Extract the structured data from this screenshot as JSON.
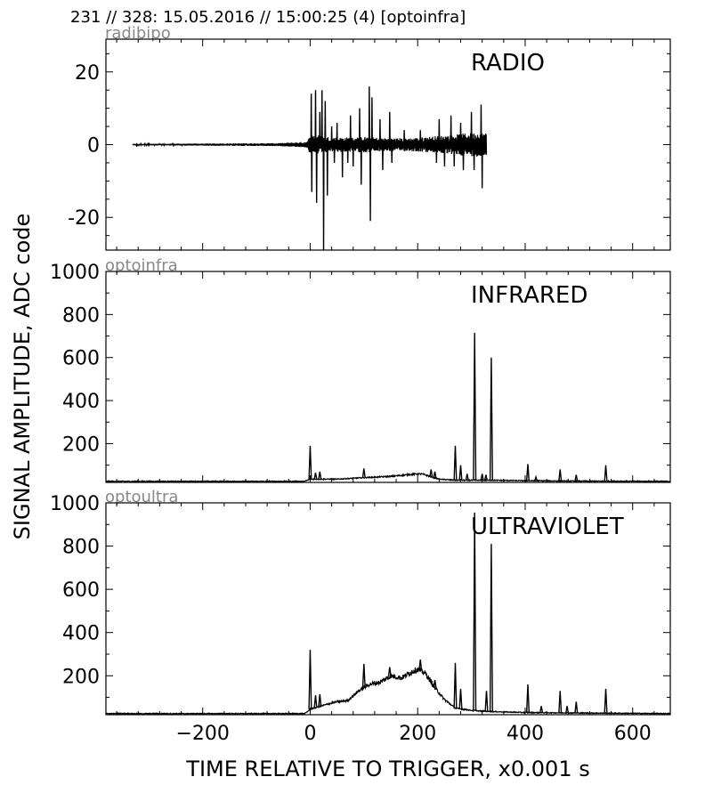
{
  "header": "231 // 328:   15.05.2016 // 15:00:25 (4)  [optoinfra]",
  "ylabel": "SIGNAL AMPLITUDE,  ADC code",
  "xlabel": "TIME RELATIVE TO TRIGGER,   x0.001 s",
  "chart_data": [
    {
      "type": "line",
      "channel": "radibipo",
      "title": "RADIO",
      "xlim": [
        -380,
        670
      ],
      "ylim": [
        -29,
        29
      ],
      "xticks": [
        -200,
        0,
        200,
        400,
        600
      ],
      "yticks": [
        20,
        0,
        -20
      ],
      "ytick_labels": [
        "20",
        "0",
        "-20"
      ],
      "grid": false,
      "color": "#000000",
      "envelope": {
        "x": [
          -330,
          -180,
          -60,
          -30,
          -5,
          0,
          20,
          40,
          60,
          80,
          100,
          120,
          140,
          160,
          180,
          200,
          220,
          240,
          260,
          280,
          300,
          320,
          328
        ],
        "amp": [
          0.2,
          0.3,
          0.4,
          0.6,
          0.8,
          3.0,
          2.5,
          2.0,
          2.0,
          2.0,
          2.2,
          2.0,
          1.8,
          1.8,
          1.8,
          1.9,
          2.2,
          2.4,
          2.6,
          3.0,
          3.2,
          3.4,
          3.2
        ]
      },
      "spikes": [
        {
          "x": 2,
          "y": 14
        },
        {
          "x": 3,
          "y": -13
        },
        {
          "x": 10,
          "y": 15
        },
        {
          "x": 12,
          "y": -16
        },
        {
          "x": 18,
          "y": 9
        },
        {
          "x": 22,
          "y": 15
        },
        {
          "x": 25,
          "y": -29
        },
        {
          "x": 28,
          "y": 12
        },
        {
          "x": 32,
          "y": -14
        },
        {
          "x": 40,
          "y": 5
        },
        {
          "x": 45,
          "y": -5
        },
        {
          "x": 50,
          "y": 6
        },
        {
          "x": 60,
          "y": -9
        },
        {
          "x": 70,
          "y": -5
        },
        {
          "x": 75,
          "y": 8
        },
        {
          "x": 80,
          "y": -6
        },
        {
          "x": 92,
          "y": 10
        },
        {
          "x": 95,
          "y": -11
        },
        {
          "x": 110,
          "y": 16
        },
        {
          "x": 112,
          "y": -21
        },
        {
          "x": 115,
          "y": 13
        },
        {
          "x": 130,
          "y": 7
        },
        {
          "x": 135,
          "y": -7
        },
        {
          "x": 148,
          "y": 9
        },
        {
          "x": 152,
          "y": -5
        },
        {
          "x": 175,
          "y": 4
        },
        {
          "x": 205,
          "y": 4
        },
        {
          "x": 235,
          "y": -5
        },
        {
          "x": 240,
          "y": 7
        },
        {
          "x": 250,
          "y": -6
        },
        {
          "x": 262,
          "y": 8
        },
        {
          "x": 268,
          "y": -6
        },
        {
          "x": 280,
          "y": 6
        },
        {
          "x": 285,
          "y": -7
        },
        {
          "x": 300,
          "y": 9
        },
        {
          "x": 305,
          "y": -7
        },
        {
          "x": 318,
          "y": 11
        },
        {
          "x": 320,
          "y": -12
        }
      ]
    },
    {
      "type": "line",
      "channel": "optoinfra",
      "title": "INFRARED",
      "xlim": [
        -380,
        670
      ],
      "ylim": [
        20,
        1000
      ],
      "xticks": [
        -200,
        0,
        200,
        400,
        600
      ],
      "yticks": [
        1000,
        800,
        600,
        400,
        200
      ],
      "ytick_labels": [
        "1000",
        "800",
        "600",
        "400",
        "200"
      ],
      "grid": false,
      "color": "#000000",
      "baseline": {
        "x": [
          -380,
          -10,
          0,
          50,
          100,
          150,
          180,
          200,
          210,
          220,
          240,
          270,
          300,
          340,
          400,
          500,
          670
        ],
        "y": [
          25,
          25,
          35,
          35,
          42,
          48,
          55,
          60,
          58,
          50,
          35,
          30,
          30,
          30,
          28,
          26,
          25
        ]
      },
      "peaks": [
        {
          "x": 0,
          "y": 190
        },
        {
          "x": 10,
          "y": 65
        },
        {
          "x": 18,
          "y": 70
        },
        {
          "x": 100,
          "y": 85
        },
        {
          "x": 225,
          "y": 80
        },
        {
          "x": 232,
          "y": 70
        },
        {
          "x": 270,
          "y": 190
        },
        {
          "x": 280,
          "y": 100
        },
        {
          "x": 292,
          "y": 60
        },
        {
          "x": 306,
          "y": 715
        },
        {
          "x": 320,
          "y": 60
        },
        {
          "x": 327,
          "y": 55
        },
        {
          "x": 337,
          "y": 600
        },
        {
          "x": 405,
          "y": 105
        },
        {
          "x": 420,
          "y": 45
        },
        {
          "x": 465,
          "y": 80
        },
        {
          "x": 495,
          "y": 55
        },
        {
          "x": 550,
          "y": 100
        }
      ]
    },
    {
      "type": "line",
      "channel": "optoultra",
      "title": "ULTRAVIOLET",
      "xlim": [
        -380,
        670
      ],
      "ylim": [
        20,
        1000
      ],
      "xticks": [
        -200,
        0,
        200,
        400,
        600
      ],
      "yticks": [
        1000,
        800,
        600,
        400,
        200
      ],
      "ytick_labels": [
        "1000",
        "800",
        "600",
        "400",
        "200"
      ],
      "grid": false,
      "color": "#000000",
      "baseline": {
        "x": [
          -380,
          -10,
          0,
          20,
          50,
          70,
          90,
          110,
          130,
          150,
          170,
          190,
          200,
          215,
          230,
          250,
          270,
          300,
          330,
          400,
          500,
          670
        ],
        "y": [
          25,
          25,
          45,
          60,
          80,
          85,
          130,
          160,
          170,
          200,
          190,
          220,
          230,
          210,
          150,
          90,
          50,
          40,
          35,
          30,
          28,
          25
        ]
      },
      "peaks": [
        {
          "x": 0,
          "y": 320
        },
        {
          "x": 10,
          "y": 110
        },
        {
          "x": 18,
          "y": 115
        },
        {
          "x": 100,
          "y": 255
        },
        {
          "x": 148,
          "y": 240
        },
        {
          "x": 205,
          "y": 275
        },
        {
          "x": 225,
          "y": 180
        },
        {
          "x": 232,
          "y": 180
        },
        {
          "x": 270,
          "y": 260
        },
        {
          "x": 280,
          "y": 140
        },
        {
          "x": 306,
          "y": 955
        },
        {
          "x": 328,
          "y": 130
        },
        {
          "x": 337,
          "y": 810
        },
        {
          "x": 405,
          "y": 160
        },
        {
          "x": 430,
          "y": 60
        },
        {
          "x": 465,
          "y": 130
        },
        {
          "x": 478,
          "y": 60
        },
        {
          "x": 495,
          "y": 80
        },
        {
          "x": 550,
          "y": 140
        }
      ]
    }
  ]
}
